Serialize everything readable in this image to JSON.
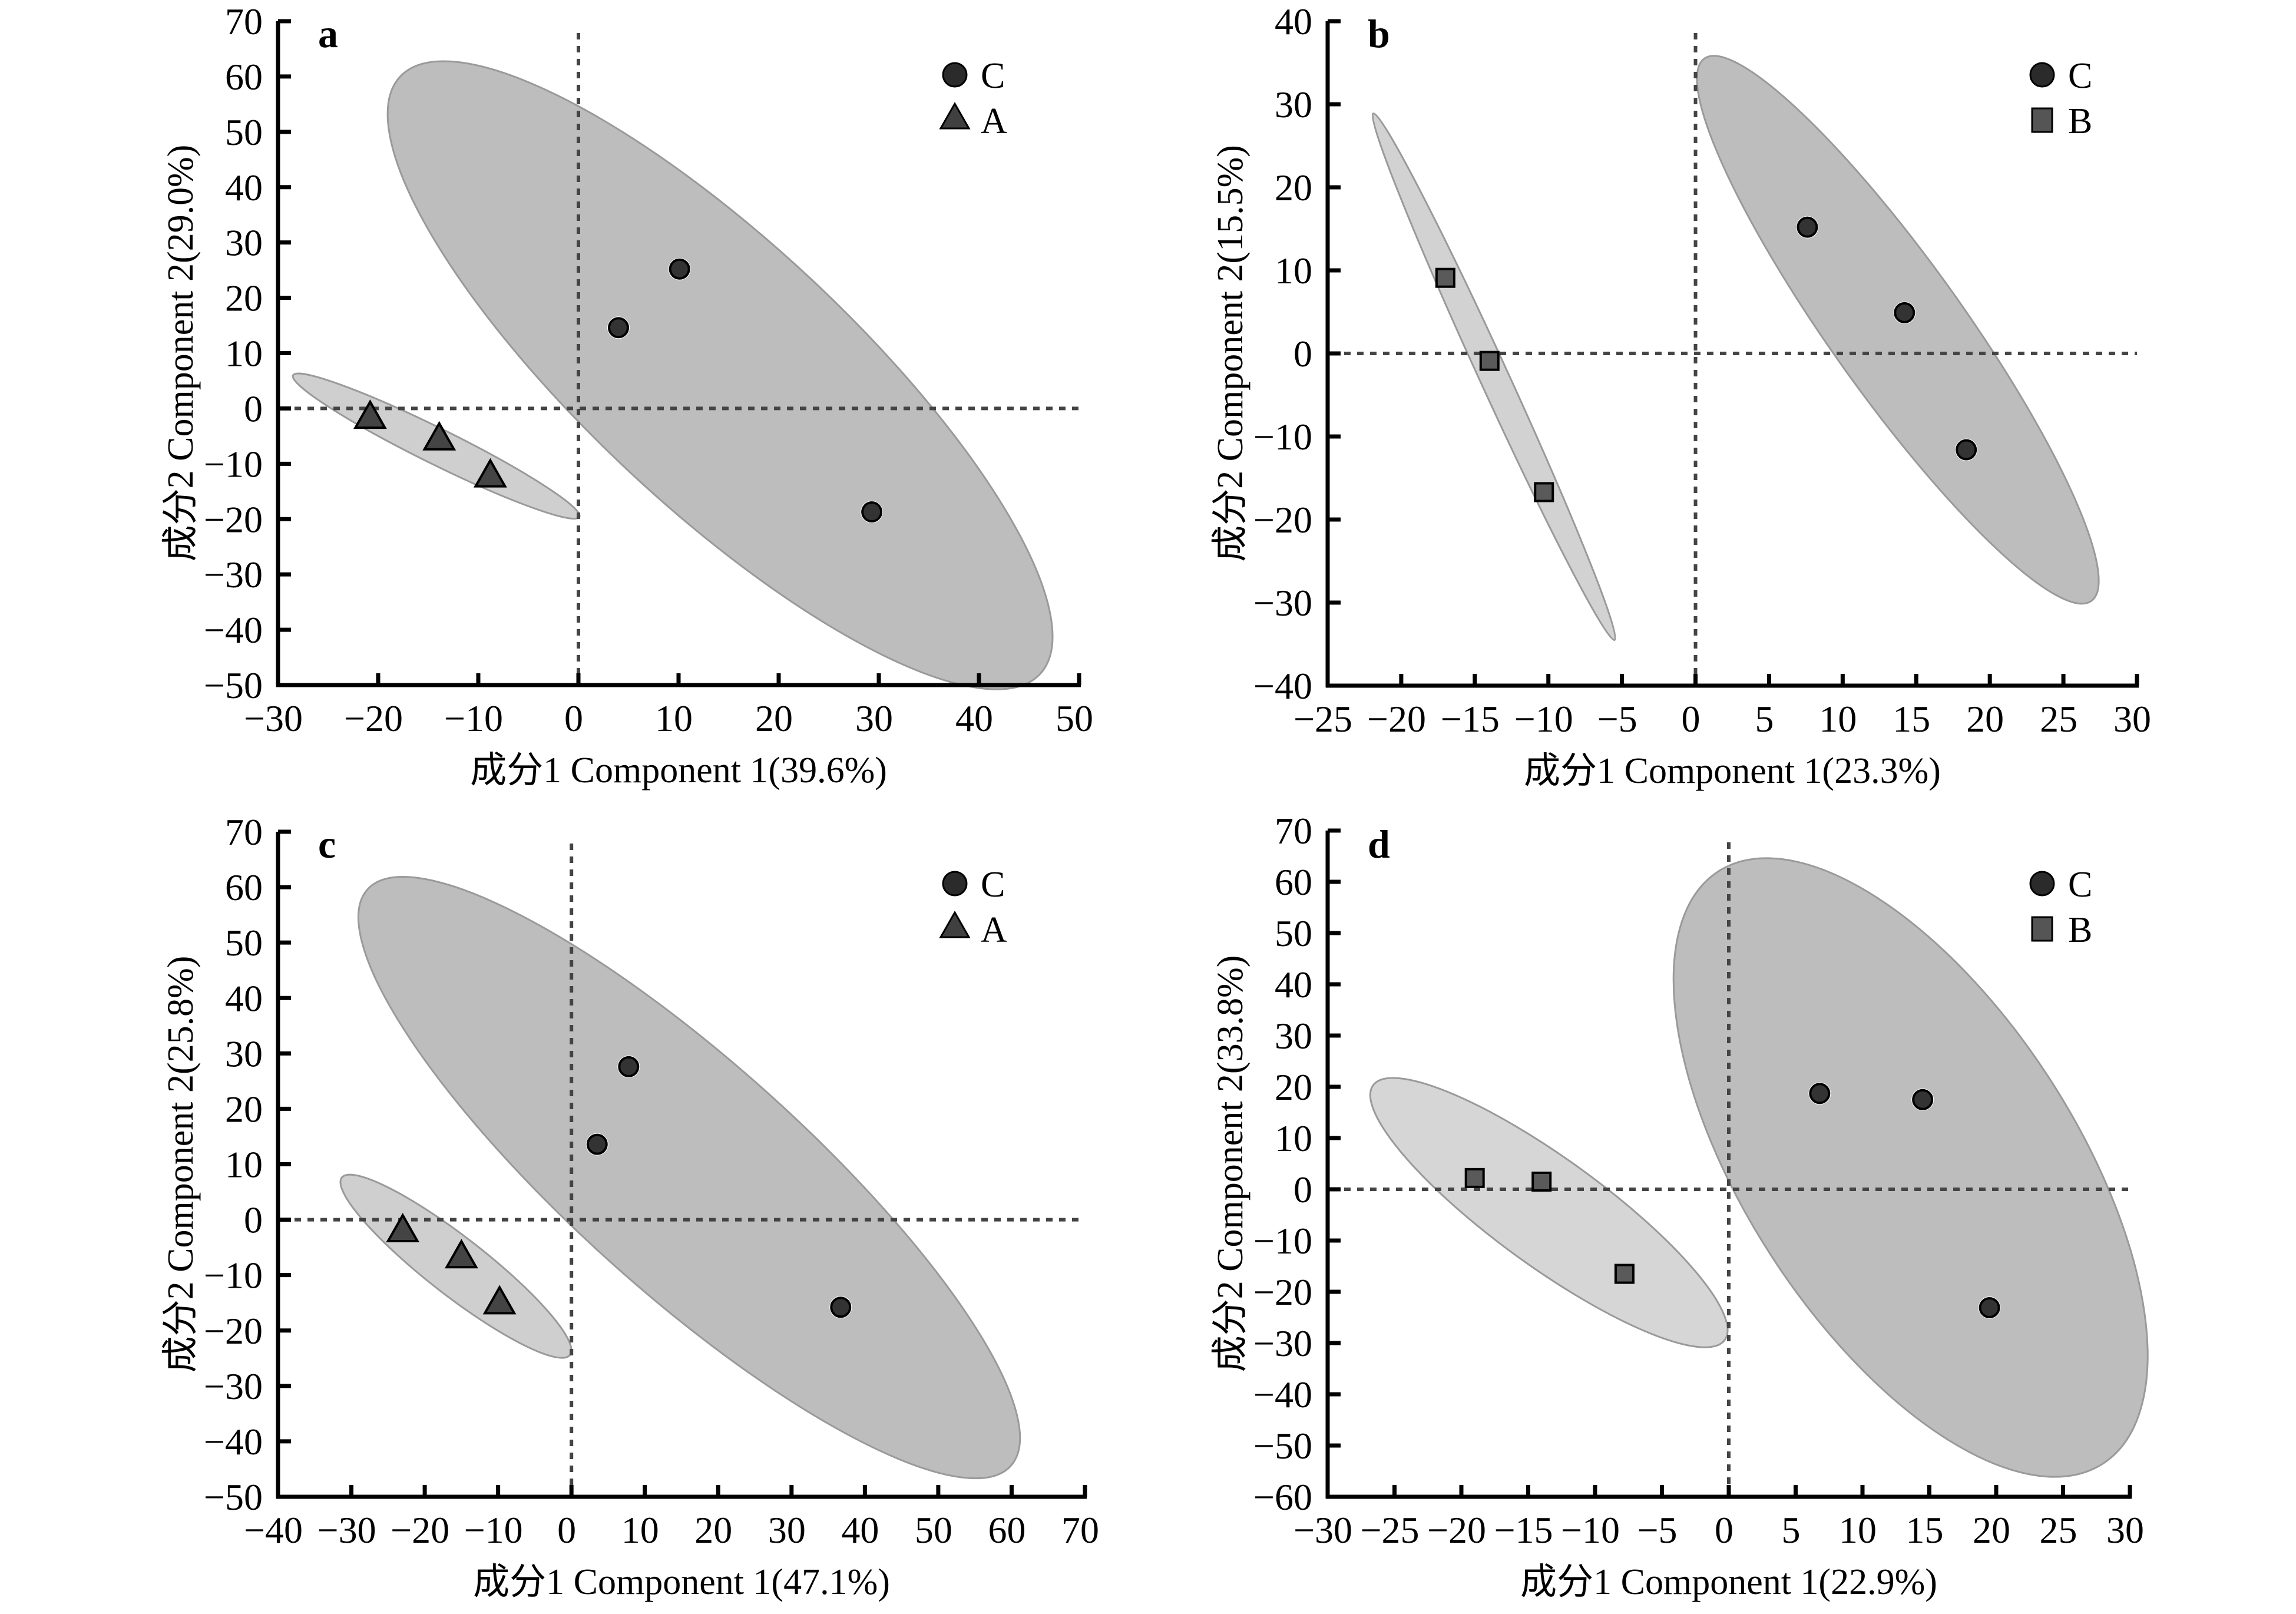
{
  "chart_data": [
    {
      "type": "scatter",
      "panel": "a",
      "xlabel": "成分1 Component 1(39.6%)",
      "ylabel": "成分2 Component 2(29.0%)",
      "xlim": [
        -30,
        50
      ],
      "ylim": [
        -50,
        70
      ],
      "xticks": [
        -30,
        -20,
        -10,
        0,
        10,
        20,
        30,
        40,
        50
      ],
      "yticks": [
        -50,
        -40,
        -30,
        -20,
        -10,
        0,
        10,
        20,
        30,
        40,
        50,
        60,
        70
      ],
      "xtick_labels": [
        "−30",
        "−20",
        "−10",
        "0",
        "10",
        "20",
        "30",
        "40",
        "50"
      ],
      "ytick_labels": [
        "−50",
        "−40",
        "−30",
        "−20",
        "−10",
        "0",
        "10",
        "20",
        "30",
        "40",
        "50",
        "60",
        "70"
      ],
      "reference_lines": {
        "x": 0,
        "y": 0,
        "style": "dotted"
      },
      "legend": {
        "placement": "top-right",
        "entries": [
          {
            "label": "C",
            "marker": "circle"
          },
          {
            "label": "A",
            "marker": "triangle"
          }
        ]
      },
      "series": [
        {
          "name": "C",
          "marker": "circle",
          "color": "#333333",
          "points": [
            [
              4.0,
              14.6
            ],
            [
              10.1,
              25.2
            ],
            [
              29.3,
              -18.7
            ]
          ],
          "ellipse": {
            "fill": "#bdbdbd",
            "major": [
              [
                -17.8,
                60.0
              ],
              [
                46.1,
                -48.0
              ]
            ],
            "minor": [
              [
                25.8,
                17.2
              ],
              [
                2.4,
                -5.1
              ]
            ]
          }
        },
        {
          "name": "A",
          "marker": "triangle",
          "color": "#444444",
          "points": [
            [
              -20.8,
              -1.7
            ],
            [
              -13.9,
              -5.6
            ],
            [
              -8.8,
              -12.3
            ]
          ],
          "ellipse": {
            "fill": "#cfcfcf",
            "major": [
              [
                -28.5,
                6.0
              ],
              [
                0.1,
                -19.6
              ]
            ],
            "minor": [
              [
                -13.0,
                -4.7
              ],
              [
                -15.5,
                -9.3
              ]
            ]
          }
        }
      ]
    },
    {
      "type": "scatter",
      "panel": "b",
      "xlabel": "成分1 Component 1(23.3%)",
      "ylabel": "成分2 Component 2(15.5%)",
      "xlim": [
        -25,
        30
      ],
      "ylim": [
        -40,
        40
      ],
      "xticks": [
        -25,
        -20,
        -15,
        -10,
        -5,
        0,
        5,
        10,
        15,
        20,
        25,
        30
      ],
      "yticks": [
        -40,
        -30,
        -20,
        -10,
        0,
        10,
        20,
        30,
        40
      ],
      "xtick_labels": [
        "−25",
        "−20",
        "−15",
        "−10",
        "−5",
        "0",
        "5",
        "10",
        "15",
        "20",
        "25",
        "30"
      ],
      "ytick_labels": [
        "−40",
        "−30",
        "−20",
        "−10",
        "0",
        "10",
        "20",
        "30",
        "40"
      ],
      "reference_lines": {
        "x": 0,
        "y": 0,
        "style": "dotted"
      },
      "legend": {
        "placement": "top-right",
        "entries": [
          {
            "label": "C",
            "marker": "circle"
          },
          {
            "label": "B",
            "marker": "square"
          }
        ]
      },
      "series": [
        {
          "name": "C",
          "marker": "circle",
          "color": "#333333",
          "points": [
            [
              7.6,
              15.2
            ],
            [
              14.2,
              4.9
            ],
            [
              18.4,
              -11.6
            ]
          ],
          "ellipse": {
            "fill": "#bdbdbd",
            "major": [
              [
                0.6,
                35.5
              ],
              [
                26.9,
                -29.8
              ]
            ],
            "minor": [
              [
                18.0,
                5.5
              ],
              [
                9.5,
                0.2
              ]
            ]
          }
        },
        {
          "name": "B",
          "marker": "square",
          "color": "#5a5a5a",
          "points": [
            [
              -17.0,
              9.1
            ],
            [
              -14.0,
              -0.9
            ],
            [
              -10.3,
              -16.7
            ]
          ],
          "ellipse": {
            "fill": "#d2d2d2",
            "major": [
              [
                -21.9,
                28.9
              ],
              [
                -5.5,
                -34.5
              ]
            ],
            "minor": [
              [
                -12.7,
                -2.4
              ],
              [
                -14.6,
                -3.2
              ]
            ]
          }
        }
      ]
    },
    {
      "type": "scatter",
      "panel": "c",
      "xlabel": "成分1 Component 1(47.1%)",
      "ylabel": "成分2 Component 2(25.8%)",
      "xlim": [
        -40,
        70
      ],
      "ylim": [
        -50,
        70
      ],
      "xticks": [
        -40,
        -30,
        -20,
        -10,
        0,
        10,
        20,
        30,
        40,
        50,
        60,
        70
      ],
      "yticks": [
        -50,
        -40,
        -30,
        -20,
        -10,
        0,
        10,
        20,
        30,
        40,
        50,
        60,
        70
      ],
      "xtick_labels": [
        "−40",
        "−30",
        "−20",
        "−10",
        "0",
        "10",
        "20",
        "30",
        "40",
        "50",
        "60",
        "70"
      ],
      "ytick_labels": [
        "−50",
        "−40",
        "−30",
        "−20",
        "−10",
        "0",
        "10",
        "20",
        "30",
        "40",
        "50",
        "60",
        "70"
      ],
      "reference_lines": {
        "x": 0,
        "y": 0,
        "style": "dotted"
      },
      "legend": {
        "placement": "top-right",
        "entries": [
          {
            "label": "C",
            "marker": "circle"
          },
          {
            "label": "A",
            "marker": "triangle"
          }
        ]
      },
      "series": [
        {
          "name": "C",
          "marker": "circle",
          "color": "#333333",
          "points": [
            [
              7.8,
              27.6
            ],
            [
              3.5,
              13.6
            ],
            [
              36.7,
              -15.8
            ]
          ],
          "ellipse": {
            "fill": "#bdbdbd",
            "major": [
              [
                -27.8,
                59.6
              ],
              [
                59.9,
                -44.4
              ]
            ],
            "minor": [
              [
                29.7,
                17.6
              ],
              [
                2.1,
                -2.4
              ]
            ]
          }
        },
        {
          "name": "A",
          "marker": "triangle",
          "color": "#444444",
          "points": [
            [
              -23.0,
              -2.1
            ],
            [
              -15.0,
              -6.8
            ],
            [
              -9.8,
              -15.1
            ]
          ],
          "ellipse": {
            "fill": "#cfcfcf",
            "major": [
              [
                -31.3,
                7.6
              ],
              [
                -0.2,
                -24.4
              ]
            ],
            "minor": [
              [
                -12.4,
                -5.6
              ],
              [
                -19.1,
                -11.2
              ]
            ]
          }
        }
      ]
    },
    {
      "type": "scatter",
      "panel": "d",
      "xlabel": "成分1 Component 1(22.9%)",
      "ylabel": "成分2 Component 2(33.8%)",
      "xlim": [
        -30,
        30
      ],
      "ylim": [
        -60,
        70
      ],
      "xticks": [
        -30,
        -25,
        -20,
        -15,
        -10,
        -5,
        0,
        5,
        10,
        15,
        20,
        25,
        30
      ],
      "yticks": [
        -60,
        -50,
        -40,
        -30,
        -20,
        -10,
        0,
        10,
        20,
        30,
        40,
        50,
        60,
        70
      ],
      "xtick_labels": [
        "−30",
        "−25",
        "−20",
        "−15",
        "−10",
        "−5",
        "0",
        "5",
        "10",
        "15",
        "20",
        "25",
        "30"
      ],
      "ytick_labels": [
        "−60",
        "−50",
        "−40",
        "−30",
        "−20",
        "−10",
        "0",
        "10",
        "20",
        "30",
        "40",
        "50",
        "60",
        "70"
      ],
      "reference_lines": {
        "x": 0,
        "y": 0,
        "style": "dotted"
      },
      "legend": {
        "placement": "top-right",
        "entries": [
          {
            "label": "C",
            "marker": "circle"
          },
          {
            "label": "B",
            "marker": "square"
          }
        ]
      },
      "series": [
        {
          "name": "C",
          "marker": "circle",
          "color": "#333333",
          "points": [
            [
              6.8,
              18.7
            ],
            [
              14.5,
              17.5
            ],
            [
              19.5,
              -23.1
            ]
          ],
          "ellipse": {
            "fill": "#bdbdbd",
            "major": [
              [
                -0.8,
                62.0
              ],
              [
                28.0,
                -53.5
              ]
            ],
            "minor": [
              [
                25.3,
                14.0
              ],
              [
                1.8,
                -5.6
              ]
            ]
          }
        },
        {
          "name": "B",
          "marker": "square",
          "color": "#5a5a5a",
          "points": [
            [
              -19.0,
              2.2
            ],
            [
              -14.0,
              1.5
            ],
            [
              -7.8,
              -16.5
            ]
          ],
          "ellipse": {
            "fill": "#d6d6d6",
            "major": [
              [
                -26.6,
                20.3
              ],
              [
                -0.3,
                -29.4
              ]
            ],
            "minor": [
              [
                -10.1,
                1.4
              ],
              [
                -16.8,
                -10.4
              ]
            ]
          }
        }
      ]
    }
  ]
}
